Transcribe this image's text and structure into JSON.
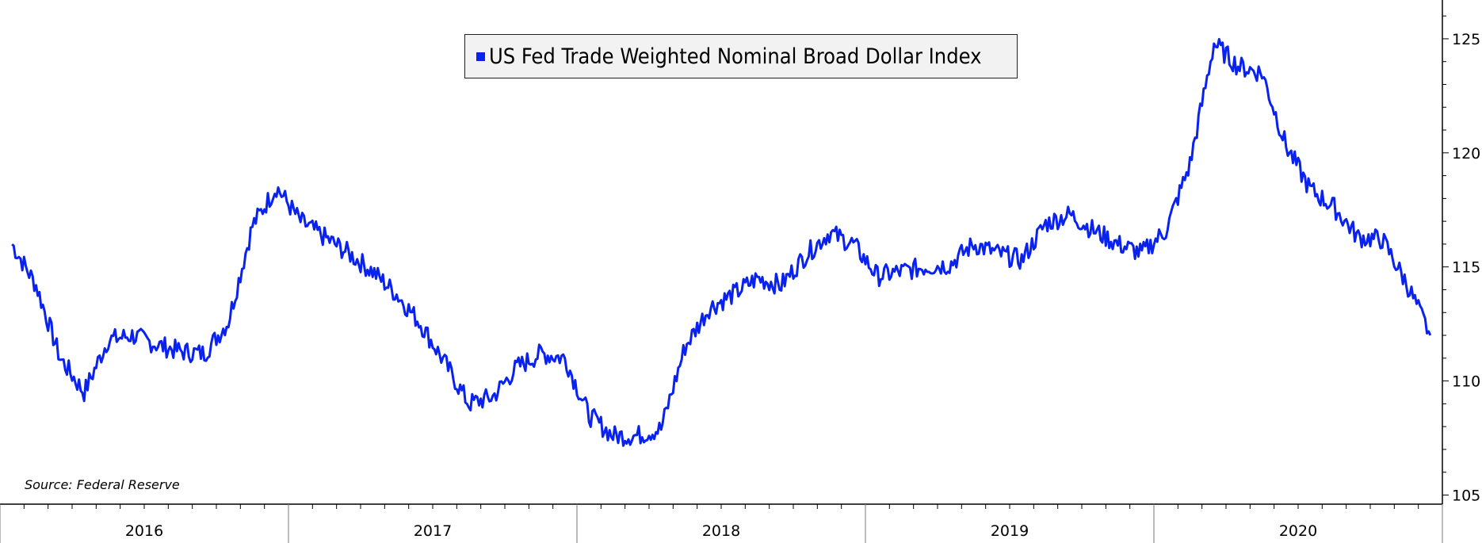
{
  "chart_data": {
    "type": "line",
    "series": [
      {
        "name": "US Fed Trade Weighted Nominal Broad Dollar Index",
        "x": [
          "2016-01",
          "2016-02",
          "2016-03",
          "2016-04",
          "2016-05",
          "2016-06",
          "2016-07",
          "2016-08",
          "2016-09",
          "2016-10",
          "2016-11",
          "2016-12",
          "2017-01",
          "2017-02",
          "2017-03",
          "2017-04",
          "2017-05",
          "2017-06",
          "2017-07",
          "2017-08",
          "2017-09",
          "2017-10",
          "2017-11",
          "2017-12",
          "2018-01",
          "2018-02",
          "2018-03",
          "2018-04",
          "2018-05",
          "2018-06",
          "2018-07",
          "2018-08",
          "2018-09",
          "2018-10",
          "2018-11",
          "2018-12",
          "2019-01",
          "2019-02",
          "2019-03",
          "2019-04",
          "2019-05",
          "2019-06",
          "2019-07",
          "2019-08",
          "2019-09",
          "2019-10",
          "2019-11",
          "2019-12",
          "2020-01",
          "2020-02",
          "2020-03",
          "2020-04",
          "2020-05",
          "2020-06",
          "2020-07",
          "2020-08",
          "2020-09",
          "2020-10",
          "2020-11",
          "2020-12"
        ],
        "values": [
          116.0,
          114.2,
          111.0,
          109.5,
          111.8,
          112.0,
          111.6,
          111.3,
          111.2,
          112.6,
          116.8,
          118.5,
          117.0,
          116.3,
          115.6,
          114.8,
          113.8,
          112.5,
          110.8,
          109.0,
          109.3,
          110.6,
          111.2,
          111.0,
          108.5,
          107.6,
          107.6,
          107.9,
          111.5,
          113.2,
          113.8,
          114.5,
          114.2,
          115.5,
          116.5,
          116.0,
          114.6,
          114.8,
          115.0,
          115.1,
          116.0,
          115.6,
          115.3,
          116.9,
          117.3,
          116.6,
          116.0,
          115.6,
          116.6,
          119.5,
          124.8,
          123.8,
          123.5,
          120.3,
          118.4,
          117.6,
          116.3,
          116.2,
          114.3,
          112.0
        ],
        "color": "#0a22f0"
      }
    ],
    "ylim": [
      104.6,
      126.7
    ],
    "yticks": [
      105,
      110,
      115,
      120,
      125
    ],
    "xticks": [
      "2016",
      "2017",
      "2018",
      "2019",
      "2020"
    ],
    "axis_side": "right",
    "grid": false,
    "legend_position": "top-center"
  },
  "legend": {
    "label": "US Fed Trade Weighted Nominal Broad Dollar Index",
    "color": "#0a22f0"
  },
  "source": "Source: Federal Reserve"
}
